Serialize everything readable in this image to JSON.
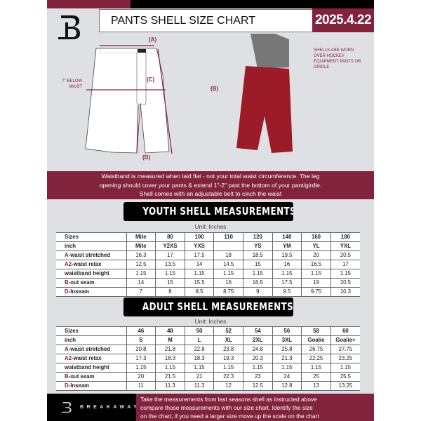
{
  "header": {
    "title": "PANTS SHELL SIZE CHART",
    "date": "2025.4.22"
  },
  "diagram": {
    "label_a": "(A)",
    "label_b": "(B)",
    "label_c": "(C)",
    "label_d": "(D)",
    "c_note": "7\" BELOW WAIST",
    "photo_note": "SHELLS ARE WORN OVER HOCKEY EQUIPMENT PANTS OR GIRDLE"
  },
  "colors": {
    "accent": "#82233e",
    "background": "#dfe0e4"
  },
  "banner": {
    "lines": [
      "Waistband is measured when laid flat - not your total waist circumference. The leg",
      "opening should cover your pants & extend 1\"-2\" past the bottom of your pant/girdle.",
      "Shell comes with an adjustable belt to cinch the waist"
    ]
  },
  "youth": {
    "title": "YOUTH SHELL MEASUREMENTS",
    "unit": "Unit: Inches",
    "rows": [
      [
        "",
        "Sizes",
        "Mite",
        "80",
        "100",
        "110",
        "120",
        "140",
        "160",
        "180"
      ],
      [
        "",
        "inch",
        "Mite",
        "Y2XS",
        "YXS",
        "",
        "YS",
        "YM",
        "YL",
        "YXL"
      ],
      [
        "A",
        "-waist stretched",
        "16.3",
        "17",
        "17.5",
        "18",
        "18.5",
        "19.5",
        "20",
        "20.5"
      ],
      [
        "A2",
        "-waist relax",
        "12.5",
        "13.5",
        "14",
        "14.5",
        "15",
        "16",
        "16.5",
        "17"
      ],
      [
        "",
        "waistband height",
        "1.15",
        "1.15",
        "1.15",
        "1.15",
        "1.15",
        "1.15",
        "1.15",
        "1.15"
      ],
      [
        "B",
        "-out seam",
        "14",
        "15",
        "15.5",
        "16",
        "16.5",
        "17.5",
        "19",
        "20.5"
      ],
      [
        "D",
        "-Inseam",
        "7",
        "8",
        "8.5",
        "8.75",
        "9",
        "9.5",
        "9.75",
        "10.3"
      ]
    ]
  },
  "adult": {
    "title": "ADULT SHELL MEASUREMENTS",
    "unit": "Unit: Inches",
    "rows": [
      [
        "",
        "Sizes",
        "46",
        "48",
        "50",
        "52",
        "54",
        "56",
        "58",
        "60"
      ],
      [
        "",
        "inch",
        "S",
        "M",
        "L",
        "XL",
        "2XL",
        "3XL",
        "Goalie",
        "Goalie+"
      ],
      [
        "A",
        "-waist stretched",
        "20.8",
        "21.8",
        "22.8",
        "23.8",
        "24.8",
        "25.8",
        "26.75",
        "27.75"
      ],
      [
        "A2",
        "-waist relax",
        "17.3",
        "18.3",
        "18.3",
        "19.3",
        "20.3",
        "21.3",
        "22.25",
        "23.25"
      ],
      [
        "",
        "waistband height",
        "1.15",
        "1.15",
        "1.15",
        "1.15",
        "1.15",
        "1.15",
        "1.15",
        "1.15"
      ],
      [
        "B",
        "-out seam",
        "20",
        "21.5",
        "21",
        "22.3",
        "23",
        "24",
        "25",
        "25.5"
      ],
      [
        "D",
        "-Inseam",
        "11",
        "11.3",
        "11.3",
        "12",
        "12.5",
        "12.8",
        "13",
        "13.25"
      ]
    ]
  },
  "footer": {
    "brand": "BREAKAWAY",
    "lines": [
      "Take the measurements from last seasons shell as instructed above",
      "compare those measurements  with our size chart. Identify the size",
      "on the chart, if you need a larger size move up the scale on the chart"
    ]
  }
}
